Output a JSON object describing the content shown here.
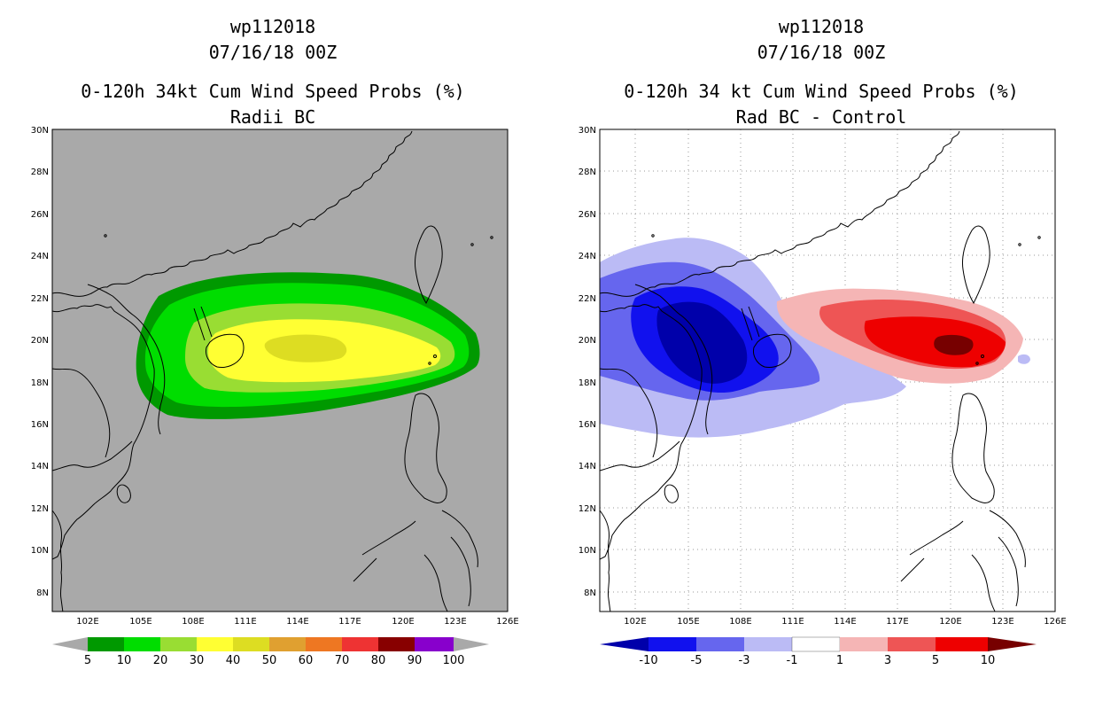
{
  "left_panel": {
    "storm_id": "wp112018",
    "datetime": "07/16/18 00Z",
    "title": "0-120h 34kt Cum Wind Speed Probs (%)",
    "subtitle": "Radii BC",
    "background_color": "#a9a9a9",
    "colorbar": {
      "colors": [
        "#009900",
        "#00dd00",
        "#99dd33",
        "#ffff33",
        "#dddd22",
        "#e0a030",
        "#ee7722",
        "#ee3333",
        "#880000",
        "#8800cc"
      ],
      "labels": [
        "5",
        "10",
        "20",
        "30",
        "40",
        "50",
        "60",
        "70",
        "80",
        "90",
        "100"
      ]
    }
  },
  "right_panel": {
    "storm_id": "wp112018",
    "datetime": "07/16/18 00Z",
    "title": "0-120h 34 kt Cum Wind Speed Probs (%)",
    "subtitle": "Rad BC - Control",
    "background_color": "#ffffff",
    "colorbar": {
      "colors": [
        "#0000aa",
        "#1111ee",
        "#6666ee",
        "#bbbbf5",
        "#ffffff",
        "#f5b5b5",
        "#ee5555",
        "#ee0000",
        "#770000"
      ],
      "labels": [
        "-10",
        "-5",
        "-3",
        "-1",
        "1",
        "3",
        "5",
        "10"
      ]
    }
  },
  "map": {
    "lon_range": [
      100,
      126
    ],
    "lat_range": [
      7,
      30
    ],
    "lon_ticks": [
      "102E",
      "105E",
      "108E",
      "111E",
      "114E",
      "117E",
      "120E",
      "123E",
      "126E"
    ],
    "lat_ticks": [
      "8N",
      "10N",
      "12N",
      "14N",
      "16N",
      "18N",
      "20N",
      "22N",
      "24N",
      "26N",
      "28N",
      "30N"
    ],
    "features": [
      "south-china-coast",
      "hainan-island",
      "taiwan-island",
      "luzon-island",
      "vietnam-coast",
      "gulf-of-thailand-coast"
    ]
  }
}
